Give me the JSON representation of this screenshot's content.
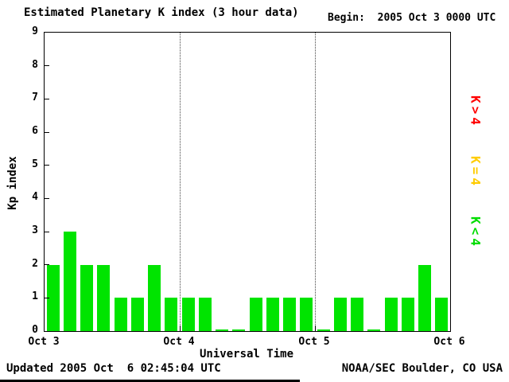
{
  "header": {
    "title": "Estimated Planetary K index (3 hour data)",
    "begin_label": "Begin:  2005 Oct 3 0000 UTC"
  },
  "footer": {
    "updated": "Updated 2005 Oct  6 02:45:04 UTC",
    "source": "NOAA/SEC Boulder, CO USA"
  },
  "legend": [
    {
      "label": "K>4",
      "color": "#ff0000"
    },
    {
      "label": "K=4",
      "color": "#ffcc00"
    },
    {
      "label": "K<4",
      "color": "#00dd00"
    }
  ],
  "chart_data": {
    "type": "bar",
    "title": "Estimated Planetary K index (3 hour data)",
    "xlabel": "Universal Time",
    "ylabel": "Kp index",
    "ylim": [
      0,
      9
    ],
    "yticks": [
      0,
      1,
      2,
      3,
      4,
      5,
      6,
      7,
      8,
      9
    ],
    "x_day_labels": [
      "Oct 3",
      "Oct 4",
      "Oct 5",
      "Oct 6"
    ],
    "bar_color": "#00e400",
    "grid": "dotted vertical lines at day boundaries",
    "legend_position": "right, rotated 90deg",
    "days": [
      {
        "date": "2005 Oct 3",
        "values": [
          2,
          3,
          2,
          2,
          1,
          1,
          2,
          1
        ]
      },
      {
        "date": "2005 Oct 4",
        "values": [
          1,
          1,
          0,
          0,
          1,
          1,
          1,
          1
        ]
      },
      {
        "date": "2005 Oct 5",
        "values": [
          0,
          1,
          1,
          0,
          1,
          1,
          2,
          1
        ]
      }
    ]
  }
}
